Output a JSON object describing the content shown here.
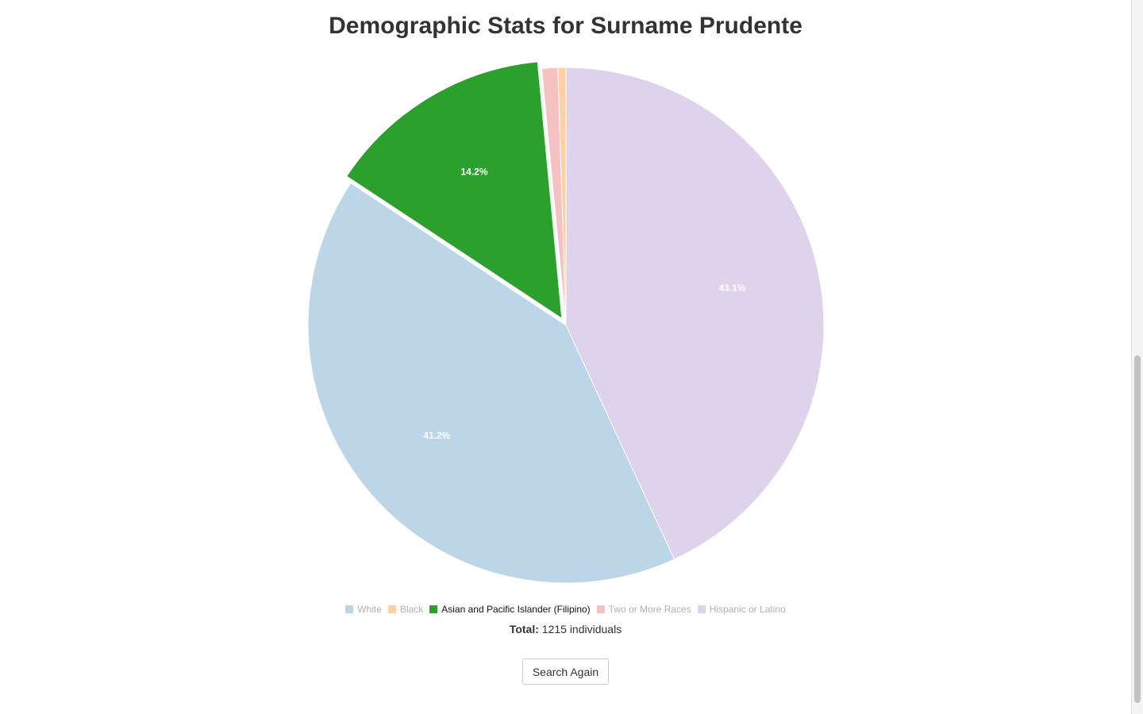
{
  "page": {
    "title": "Demographic Stats for Surname Prudente",
    "total_label": "Total:",
    "total_value": "1215 individuals",
    "search_again_label": "Search Again"
  },
  "chart_data": {
    "type": "pie",
    "title": "Demographic Stats for Surname Prudente",
    "legend_position": "bottom",
    "slices": [
      {
        "name": "Hispanic or Latino",
        "value": 43.1,
        "label": "43.1%",
        "color": "#dfd3eb",
        "legend_active": false
      },
      {
        "name": "White",
        "value": 41.2,
        "label": "41.2%",
        "color": "#bcd6e8",
        "legend_active": false
      },
      {
        "name": "Asian and Pacific Islander (Filipino)",
        "value": 14.2,
        "label": "14.2%",
        "color": "#2ca02c",
        "legend_active": true,
        "offset": true
      },
      {
        "name": "Two or More Races",
        "value": 1.0,
        "label": "",
        "color": "#f5c1c1",
        "legend_active": false
      },
      {
        "name": "Black",
        "value": 0.5,
        "label": "",
        "color": "#fdd0a6",
        "legend_active": false
      }
    ],
    "legend": [
      {
        "name": "White",
        "color": "#bcd6e8",
        "active": false
      },
      {
        "name": "Black",
        "color": "#fdd0a6",
        "active": false
      },
      {
        "name": "Asian and Pacific Islander (Filipino)",
        "color": "#2ca02c",
        "active": true
      },
      {
        "name": "Two or More Races",
        "color": "#f5c1c1",
        "active": false
      },
      {
        "name": "Hispanic or Latino",
        "color": "#dfd3eb",
        "active": false
      }
    ]
  }
}
